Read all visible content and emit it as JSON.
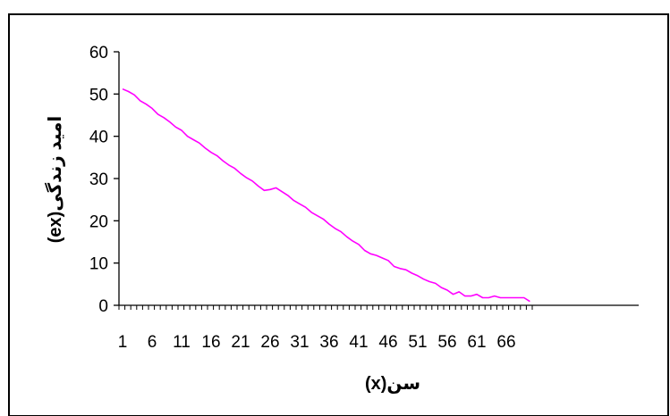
{
  "chart_data": {
    "type": "line",
    "title": "",
    "xlabel": "سن(x)",
    "ylabel": "امید زندگی(ex)",
    "ylim": [
      0,
      60
    ],
    "yticks": [
      0,
      10,
      20,
      30,
      40,
      50,
      60
    ],
    "xticks": [
      1,
      6,
      11,
      16,
      21,
      26,
      31,
      36,
      41,
      46,
      51,
      56,
      61,
      66
    ],
    "xlim": [
      1,
      70
    ],
    "grid": false,
    "legend": "none",
    "colors": {
      "line": "#ff00ff",
      "axis": "#000000",
      "border": "#000000"
    },
    "series": [
      {
        "x": [
          1,
          2,
          3,
          4,
          5,
          6,
          7,
          8,
          9,
          10,
          11,
          12,
          13,
          14,
          15,
          16,
          17,
          18,
          19,
          20,
          21,
          22,
          23,
          24,
          25,
          26,
          27,
          28,
          29,
          30,
          31,
          32,
          33,
          34,
          35,
          36,
          37,
          38,
          39,
          40,
          41,
          42,
          43,
          44,
          45,
          46,
          47,
          48,
          49,
          50,
          51,
          52,
          53,
          54,
          55,
          56,
          57,
          58,
          59,
          60,
          61,
          62,
          63,
          64,
          65,
          66,
          67,
          68,
          69,
          70
        ],
        "values": [
          51.2,
          50.6,
          49.8,
          48.4,
          47.6,
          46.6,
          45.2,
          44.4,
          43.4,
          42.2,
          41.4,
          40.0,
          39.2,
          38.4,
          37.2,
          36.2,
          35.4,
          34.2,
          33.2,
          32.4,
          31.2,
          30.2,
          29.4,
          28.2,
          27.2,
          27.4,
          27.8,
          26.9,
          26.0,
          24.8,
          24.0,
          23.2,
          22.0,
          21.2,
          20.4,
          19.2,
          18.2,
          17.4,
          16.2,
          15.2,
          14.4,
          13.0,
          12.2,
          11.8,
          11.2,
          10.6,
          9.2,
          8.7,
          8.4,
          7.6,
          7.0,
          6.2,
          5.6,
          5.2,
          4.2,
          3.6,
          2.6,
          3.2,
          2.2,
          2.2,
          2.6,
          1.8,
          1.8,
          2.2,
          1.8,
          1.8,
          1.8,
          1.8,
          1.8,
          0.9
        ]
      }
    ]
  }
}
